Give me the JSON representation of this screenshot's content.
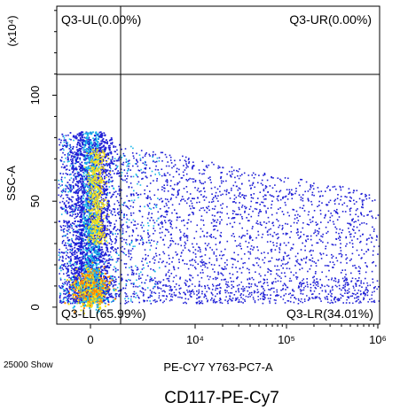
{
  "chart_data": {
    "type": "scatter",
    "gate": "Q3",
    "quadrants": {
      "UL": "Q3-UL(0.00%)",
      "UR": "Q3-UR(0.00%)",
      "LL": "Q3-LL(65.99%)",
      "LR": "Q3-LR(34.01%)"
    },
    "xlabel": "PE-CY7 Y763-PC7-A",
    "ylabel": "SSC-A",
    "y_scale_label": "(x10⁴)",
    "x_scale": "biexponential",
    "x_ticks": [
      {
        "label": "0",
        "value": 0
      },
      {
        "label": "10⁴",
        "value": 10000
      },
      {
        "label": "10⁵",
        "value": 100000
      },
      {
        "label": "10⁶",
        "value": 1000000
      }
    ],
    "y_ticks": [
      {
        "label": "0",
        "value": 0
      },
      {
        "label": "50",
        "value": 50
      },
      {
        "label": "100",
        "value": 100
      }
    ],
    "ylim": [
      -8,
      142
    ],
    "event_count_note": "25000 Show",
    "caption": "CD117-PE-Cy7",
    "colors": {
      "density_low": "#1f1fd6",
      "density_mid": "#19b6e8",
      "density_high": "#f5e21a",
      "density_peak": "#ff8800"
    }
  }
}
